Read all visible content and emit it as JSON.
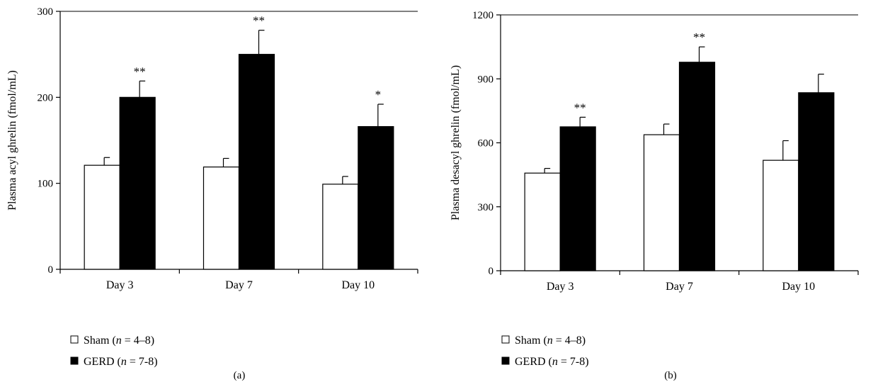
{
  "chart_data": [
    {
      "type": "bar",
      "panel_label": "(a)",
      "ylabel": "Plasma acyl ghrelin (fmol/mL)",
      "xlabel": "",
      "categories": [
        "Day 3",
        "Day 7",
        "Day 10"
      ],
      "ylim": [
        0,
        300
      ],
      "yticks": [
        0,
        100,
        200,
        300
      ],
      "series": [
        {
          "name": "Sham (n = 4–8)",
          "values": [
            121,
            119,
            99
          ],
          "errors": [
            9,
            10,
            9
          ],
          "color": "#ffffff"
        },
        {
          "name": "GERD (n = 7-8)",
          "values": [
            200,
            250,
            166
          ],
          "errors": [
            19,
            28,
            26
          ],
          "color": "#000000"
        }
      ],
      "significance": [
        "**",
        "**",
        "*"
      ],
      "legend": [
        {
          "prefix": "Sham (",
          "italic": "n",
          "suffix": " = 4–8)"
        },
        {
          "prefix": "GERD (",
          "italic": "n",
          "suffix": " = 7-8)"
        }
      ],
      "legend_position": "bottom-left"
    },
    {
      "type": "bar",
      "panel_label": "(b)",
      "ylabel": "Plasma desacyl ghrelin (fmol/mL)",
      "xlabel": "",
      "categories": [
        "Day 3",
        "Day 7",
        "Day 10"
      ],
      "ylim": [
        0,
        1200
      ],
      "yticks": [
        0,
        300,
        600,
        900,
        1200
      ],
      "series": [
        {
          "name": "Sham (n = 4–8)",
          "values": [
            458,
            638,
            518
          ],
          "errors": [
            22,
            50,
            92
          ],
          "color": "#ffffff"
        },
        {
          "name": "GERD (n = 7-8)",
          "values": [
            675,
            978,
            835
          ],
          "errors": [
            45,
            72,
            87
          ],
          "color": "#000000"
        }
      ],
      "significance": [
        "**",
        "**",
        ""
      ],
      "legend": [
        {
          "prefix": "Sham (",
          "italic": "n",
          "suffix": " = 4–8)"
        },
        {
          "prefix": "GERD (",
          "italic": "n",
          "suffix": " = 7-8)"
        }
      ],
      "legend_position": "bottom-left"
    }
  ]
}
